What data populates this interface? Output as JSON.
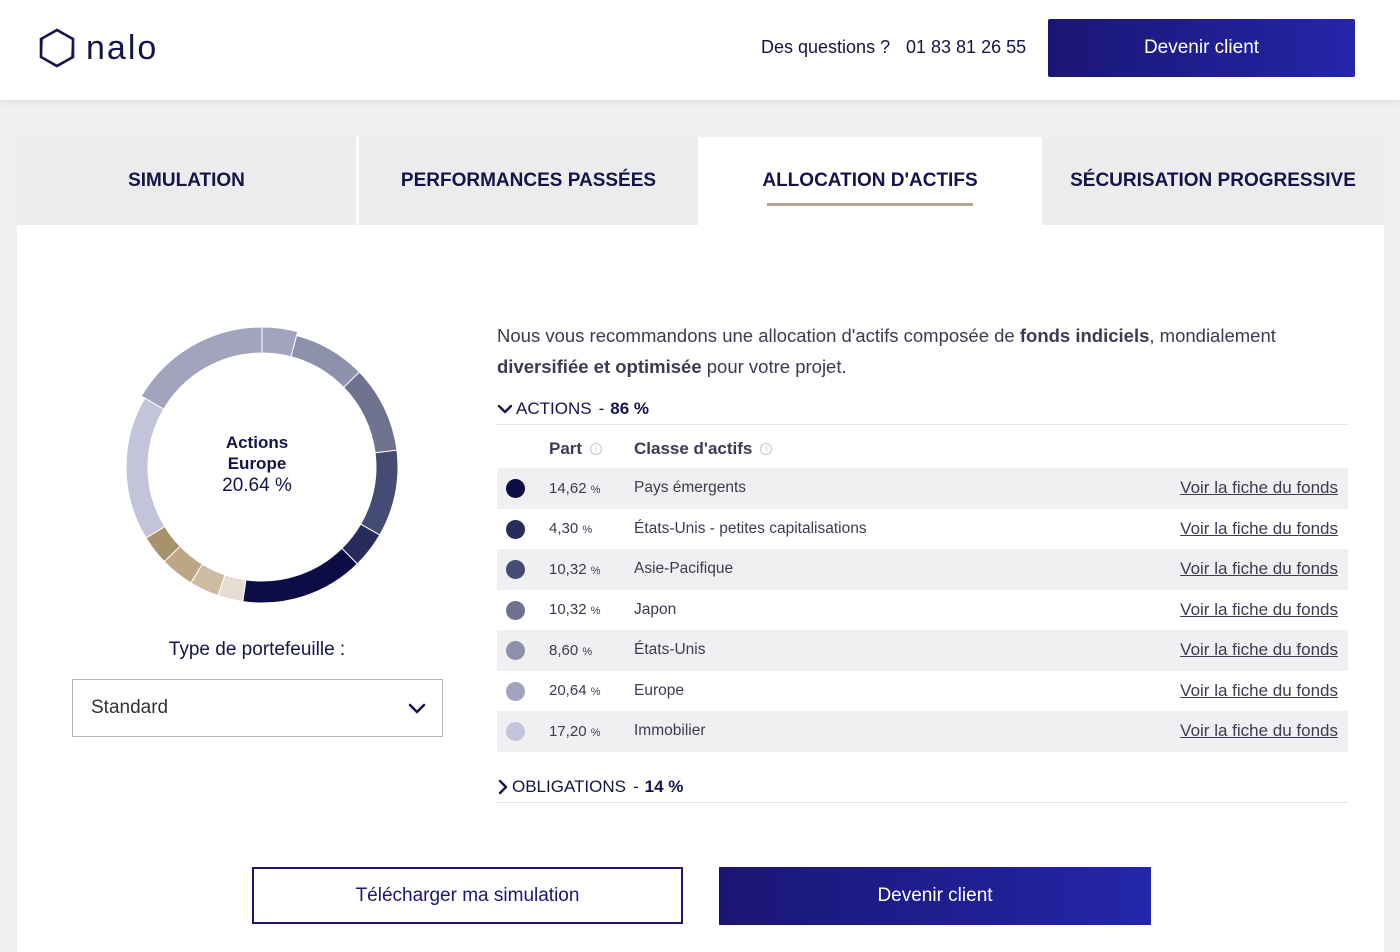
{
  "header": {
    "logo_text": "nalo",
    "questions": "Des questions ?",
    "phone": "01 83 81 26 55",
    "cta": "Devenir client"
  },
  "tabs": [
    {
      "label": "SIMULATION",
      "active": false
    },
    {
      "label": "PERFORMANCES PASSÉES",
      "active": false
    },
    {
      "label": "ALLOCATION D'ACTIFS",
      "active": true
    },
    {
      "label": "SÉCURISATION PROGRESSIVE",
      "active": false
    }
  ],
  "donut": {
    "center_label_line1": "Actions",
    "center_label_line2": "Europe",
    "center_value": "20.64 %",
    "highlighted": "Europe"
  },
  "portfolio": {
    "label": "Type de portefeuille :",
    "selected": "Standard"
  },
  "intro": {
    "part1": "Nous vous recommandons une allocation d'actifs composée de ",
    "bold1": "fonds indiciels",
    "part2": ", mondialement ",
    "bold2": "diversifiée et optimisée",
    "part3": " pour votre projet."
  },
  "actions_section": {
    "label": "ACTIONS",
    "separator": "-",
    "pct": "86 %",
    "expanded": true
  },
  "obligations_section": {
    "label": "OBLIGATIONS",
    "separator": "-",
    "pct": "14 %",
    "expanded": false
  },
  "table": {
    "col_part": "Part",
    "col_class": "Classe d'actifs",
    "info_glyph": "i",
    "link_label": "Voir la fiche du fonds",
    "rows": [
      {
        "part": "14,62",
        "unit": "%",
        "class": "Pays émergents",
        "color": "#0d0d45"
      },
      {
        "part": "4,30",
        "unit": "%",
        "class": "États-Unis - petites capitalisations",
        "color": "#282c5c"
      },
      {
        "part": "10,32",
        "unit": "%",
        "class": "Asie-Pacifique",
        "color": "#444b75"
      },
      {
        "part": "10,32",
        "unit": "%",
        "class": "Japon",
        "color": "#70738f"
      },
      {
        "part": "8,60",
        "unit": "%",
        "class": "États-Unis",
        "color": "#8e91ac"
      },
      {
        "part": "20,64",
        "unit": "%",
        "class": "Europe",
        "color": "#a2a3be"
      },
      {
        "part": "17,20",
        "unit": "%",
        "class": "Immobilier",
        "color": "#c3c4da"
      }
    ]
  },
  "bond_segments": [
    {
      "value": 3.5,
      "color": "#a8926c"
    },
    {
      "value": 4.0,
      "color": "#bca685"
    },
    {
      "value": 3.5,
      "color": "#cdbba2"
    },
    {
      "value": 3.0,
      "color": "#e6ddd2"
    }
  ],
  "buttons": {
    "download": "Télécharger ma simulation",
    "cta": "Devenir client"
  }
}
